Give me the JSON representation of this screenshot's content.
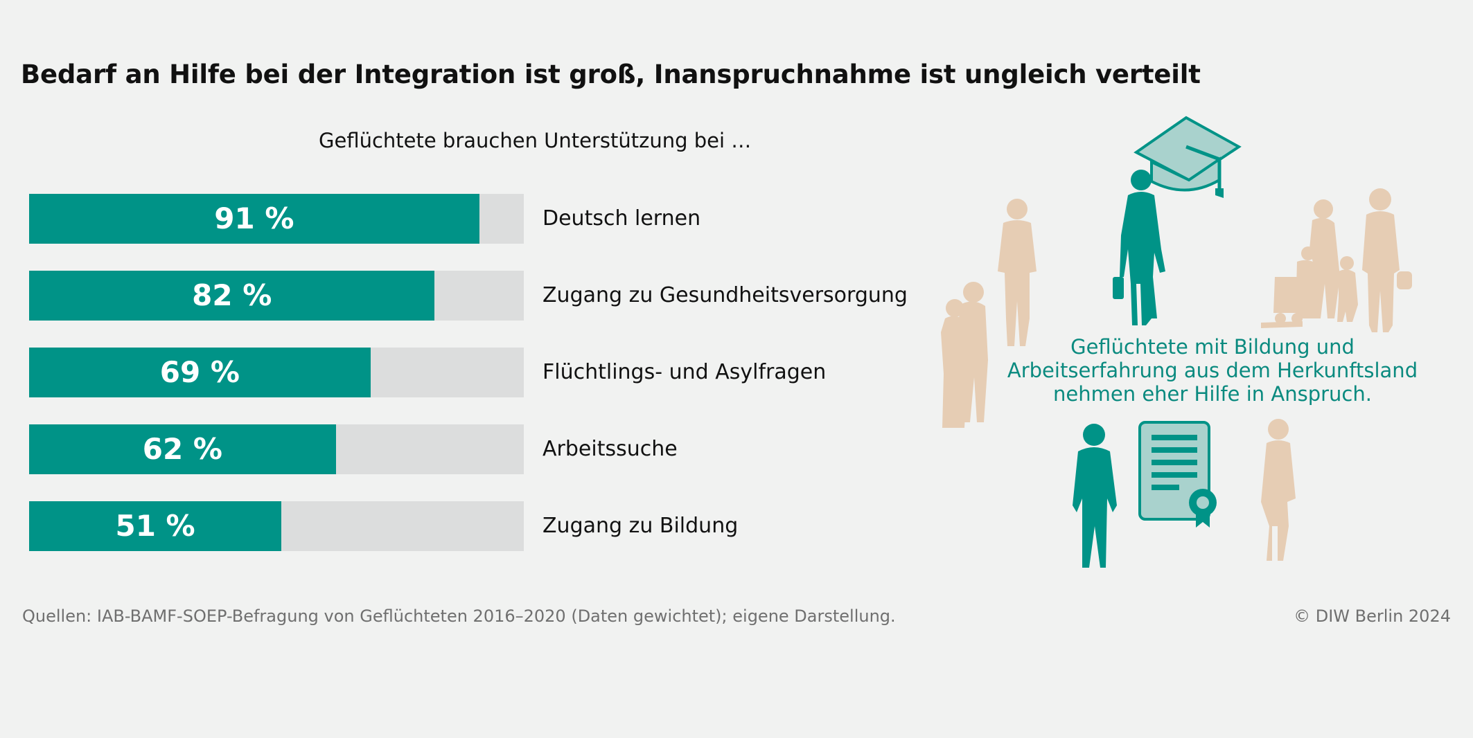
{
  "header": {
    "title": "Bedarf an Hilfe bei der Integration ist groß, Inanspruchnahme ist ungleich verteilt"
  },
  "chart_data": {
    "type": "bar",
    "orientation": "horizontal",
    "title": "Geflüchtete brauchen Unterstützung bei …",
    "categories": [
      "Deutsch lernen",
      "Zugang zu Gesundheitsversorgung",
      "Flüchtlings- und Asylfragen",
      "Arbeitssuche",
      "Zugang zu Bildung"
    ],
    "values": [
      91,
      82,
      69,
      62,
      51
    ],
    "value_labels": [
      "91 %",
      "82 %",
      "69 %",
      "62 %",
      "51 %"
    ],
    "xlim": [
      0,
      100
    ],
    "unit": "%",
    "grid": false,
    "colors": {
      "bar": "#009387",
      "track": "#dcdddd"
    }
  },
  "illustration": {
    "note": "Geflüchtete mit Bildung und Arbeitserfahrung aus dem Herkunftsland nehmen eher Hilfe in Anspruch.",
    "icons": [
      "graduation-cap-icon",
      "certificate-icon",
      "person-silhouette-icon"
    ],
    "colors": {
      "accent": "#009387",
      "beige": "#e6cdb4",
      "light_accent": "#a9d2cd"
    }
  },
  "footer": {
    "source": "Quellen: IAB-BAMF-SOEP-Befragung von Geflüchteten 2016–2020 (Daten gewichtet); eigene Darstellung.",
    "credit": "© DIW Berlin 2024"
  }
}
